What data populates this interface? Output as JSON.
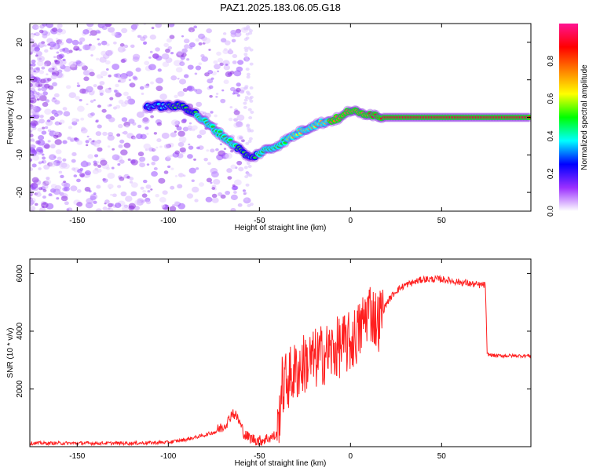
{
  "title": "PAZ1.2025.183.06.05.G18",
  "chart_data": [
    {
      "type": "heatmap",
      "title": "PAZ1.2025.183.06.05.G18",
      "xlabel": "Height of straight line (km)",
      "ylabel": "Frequency (Hz)",
      "xlim": [
        -176,
        99
      ],
      "ylim": [
        -25,
        25
      ],
      "x_ticks": [
        -150,
        -100,
        -50,
        0,
        50
      ],
      "y_ticks": [
        -20,
        -10,
        0,
        10,
        20
      ],
      "grid": false,
      "colorbar": {
        "label": "Normalized spectral amplitude",
        "range": [
          0,
          1
        ],
        "ticks": [
          0.0,
          0.2,
          0.4,
          0.6,
          0.8
        ],
        "colormap": [
          "#ffffff",
          "#9b30ff",
          "#0000ff",
          "#00ffff",
          "#00ff00",
          "#ffff00",
          "#ff8000",
          "#ff0000",
          "#ff1493"
        ]
      },
      "ridge": {
        "x": [
          -112,
          -100,
          -92,
          -85,
          -78,
          -70,
          -62,
          -55,
          -48,
          -42,
          -35,
          -28,
          -20,
          -12,
          -5,
          0,
          5,
          10,
          18,
          99
        ],
        "y": [
          3,
          3,
          3,
          1,
          -2,
          -5,
          -8,
          -11,
          -9,
          -8,
          -6,
          -4,
          -2,
          -1,
          0,
          2,
          1,
          1,
          0,
          0
        ],
        "amplitude": [
          0.3,
          0.45,
          0.5,
          0.5,
          0.55,
          0.55,
          0.5,
          0.45,
          0.55,
          0.6,
          0.6,
          0.65,
          0.7,
          0.75,
          0.8,
          0.85,
          0.85,
          0.85,
          0.9,
          0.95
        ]
      }
    },
    {
      "type": "line",
      "xlabel": "Height of straight line (km)",
      "ylabel": "SNR (10 * v/v)",
      "xlim": [
        -176,
        99
      ],
      "ylim": [
        0,
        6500
      ],
      "x_ticks": [
        -150,
        -100,
        -50,
        0,
        50
      ],
      "y_ticks": [
        2000,
        4000,
        6000
      ],
      "color": "#ff2020",
      "grid": false,
      "series": [
        {
          "x": [
            -176,
            -150,
            -120,
            -100,
            -90,
            -80,
            -75,
            -70,
            -67,
            -65,
            -62,
            -58,
            -55,
            -50,
            -45,
            -40,
            -38,
            -35,
            -30,
            -25,
            -20,
            -15,
            -10,
            -5,
            0,
            5,
            8,
            10,
            12,
            15,
            20,
            25,
            30,
            40,
            50,
            60,
            70,
            74,
            75,
            80,
            90,
            99
          ],
          "y": [
            120,
            120,
            120,
            150,
            250,
            400,
            500,
            700,
            900,
            1200,
            1000,
            400,
            300,
            200,
            300,
            400,
            2000,
            2300,
            2600,
            2900,
            3000,
            3200,
            3300,
            3500,
            3600,
            4000,
            4500,
            4800,
            4600,
            4300,
            5000,
            5400,
            5600,
            5800,
            5800,
            5700,
            5600,
            5600,
            3200,
            3150,
            3150,
            3150
          ]
        }
      ]
    }
  ]
}
